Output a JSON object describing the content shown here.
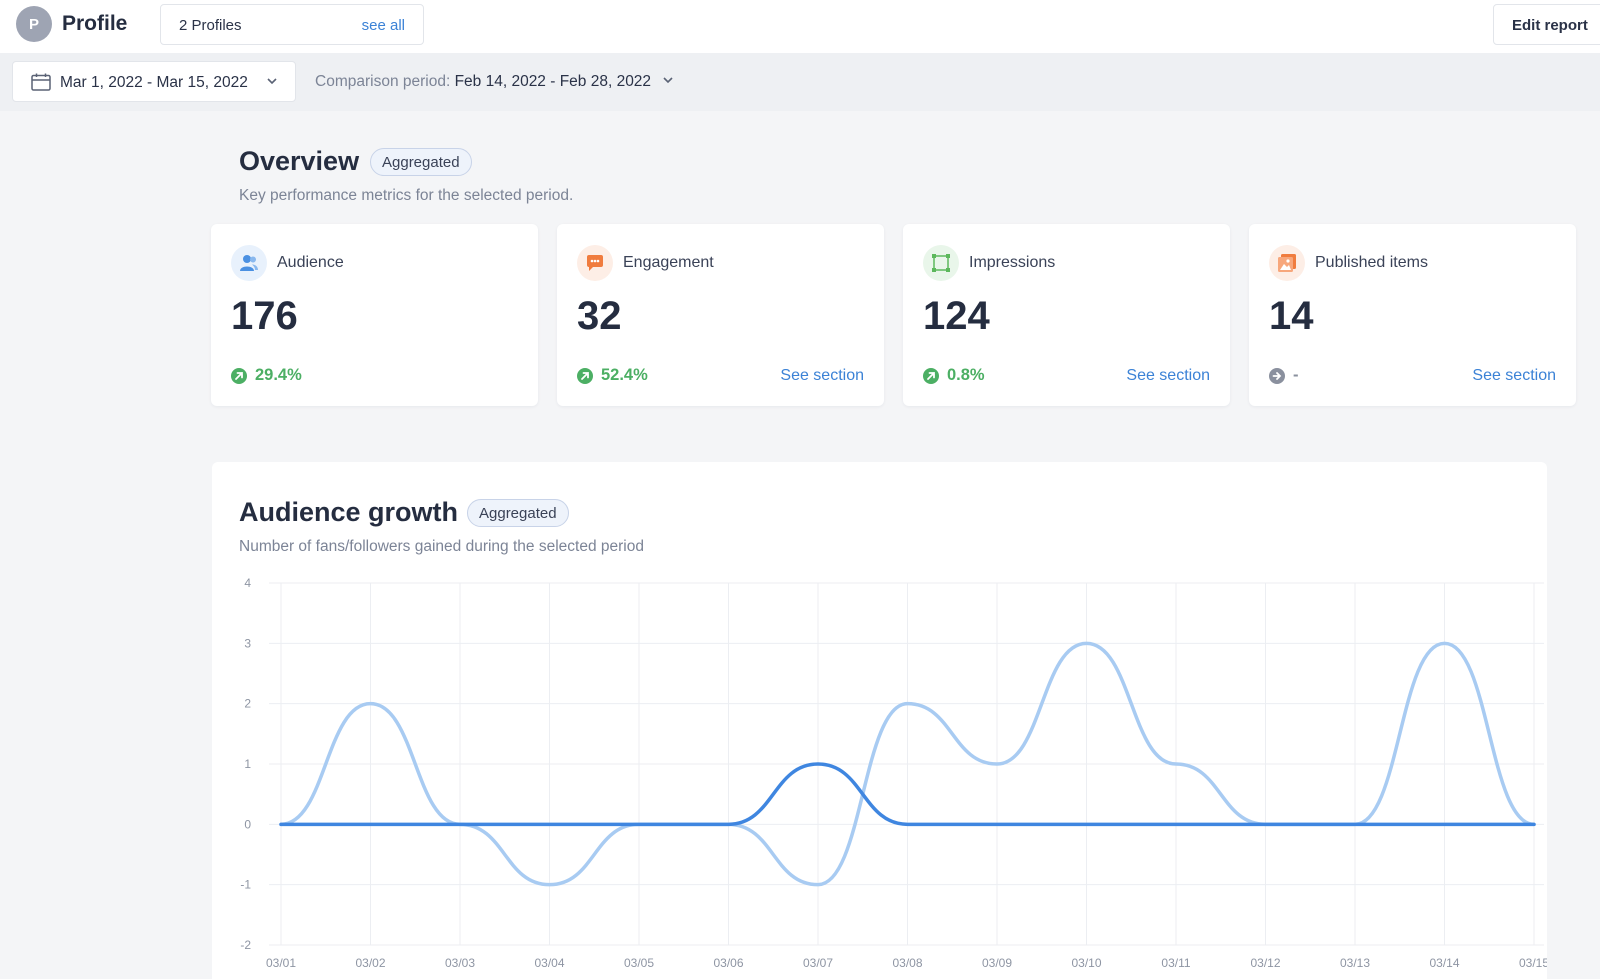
{
  "header": {
    "avatar_letter": "P",
    "title": "Profile",
    "profiles_count": "2 Profiles",
    "see_all": "see all",
    "edit_report": "Edit report"
  },
  "datebar": {
    "date_range": "Mar 1, 2022 - Mar 15, 2022",
    "comparison_label": "Comparison period:",
    "comparison_value": "Feb 14, 2022 - Feb 28, 2022"
  },
  "overview": {
    "title": "Overview",
    "badge": "Aggregated",
    "subtitle": "Key performance metrics for the selected period.",
    "cards": [
      {
        "label": "Audience",
        "value": "176",
        "change": "29.4%",
        "link": "",
        "icon": "audience-icon",
        "color": "#4a90e2"
      },
      {
        "label": "Engagement",
        "value": "32",
        "change": "52.4%",
        "link": "See section",
        "icon": "engagement-icon",
        "color": "#f07c3e"
      },
      {
        "label": "Impressions",
        "value": "124",
        "change": "0.8%",
        "link": "See section",
        "icon": "impressions-icon",
        "color": "#5cb85c"
      },
      {
        "label": "Published items",
        "value": "14",
        "change": "-",
        "link": "See section",
        "icon": "published-items-icon",
        "color": "#f07c3e"
      }
    ]
  },
  "audience_growth": {
    "title": "Audience growth",
    "badge": "Aggregated",
    "subtitle": "Number of fans/followers gained during the selected period"
  },
  "colors": {
    "accent": "#3b82d6",
    "positive": "#4caf64",
    "series_primary": "#3f86e0",
    "series_secondary": "#a8cbf2"
  },
  "chart_data": {
    "type": "line",
    "categories": [
      "03/01",
      "03/02",
      "03/03",
      "03/04",
      "03/05",
      "03/06",
      "03/07",
      "03/08",
      "03/09",
      "03/10",
      "03/11",
      "03/12",
      "03/13",
      "03/14",
      "03/15"
    ],
    "series": [
      {
        "values": [
          0,
          0,
          0,
          0,
          0,
          0,
          1,
          0,
          0,
          0,
          0,
          0,
          0,
          0,
          0
        ]
      },
      {
        "values": [
          0,
          2,
          0,
          -1,
          0,
          0,
          -1,
          2,
          1,
          3,
          1,
          0,
          0,
          3,
          0
        ]
      }
    ],
    "yticks": [
      "4",
      "3",
      "2",
      "1",
      "0",
      "-1",
      "-2"
    ],
    "ylim": [
      -2,
      4
    ],
    "grid": true
  }
}
